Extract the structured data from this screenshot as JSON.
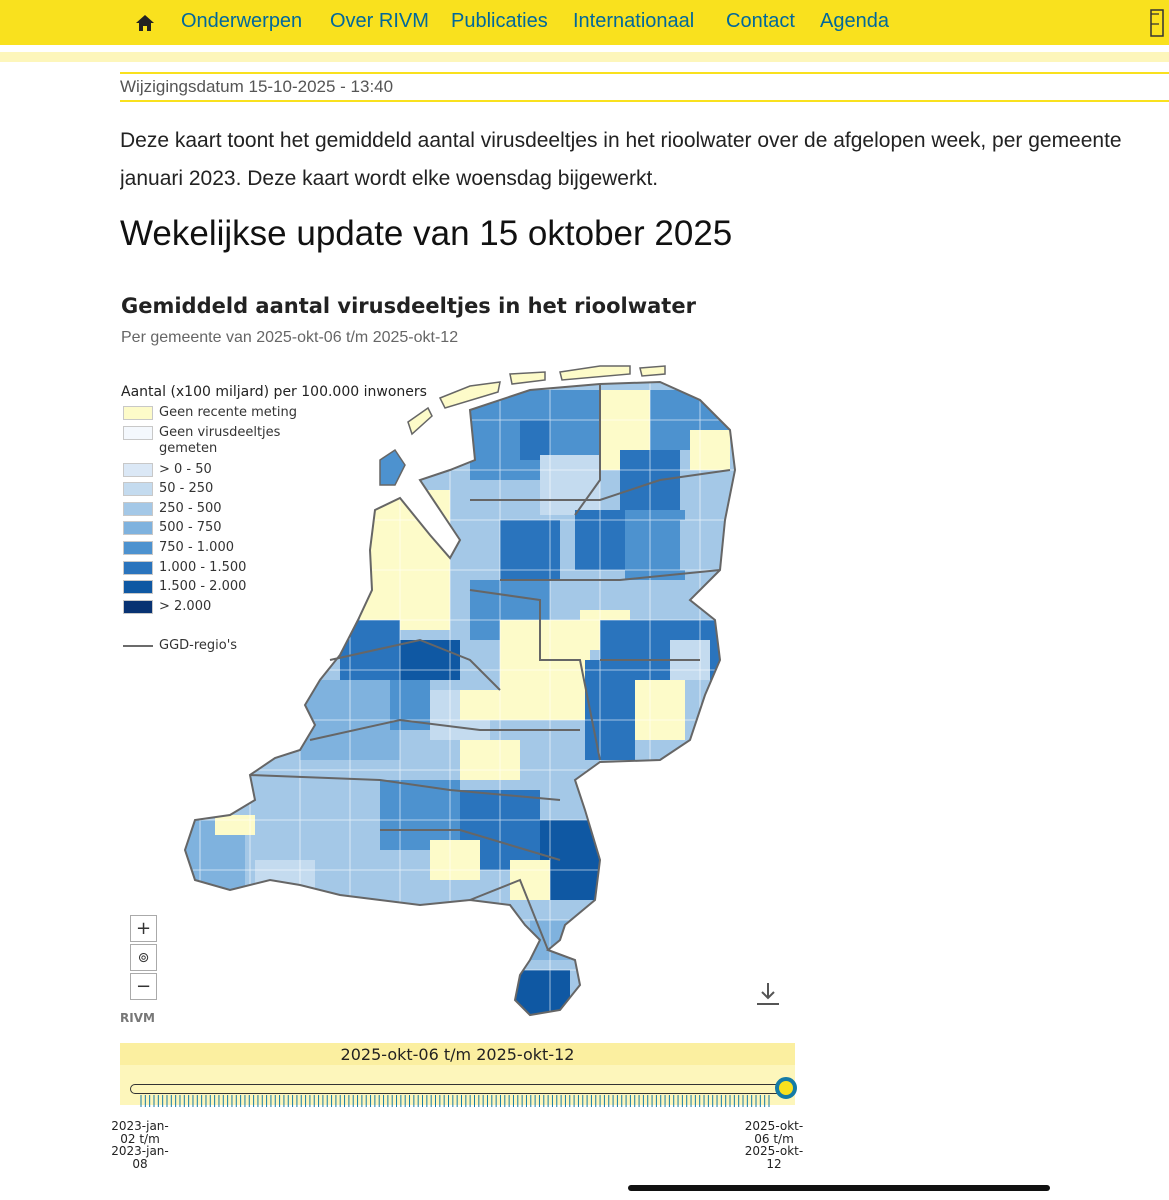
{
  "nav": {
    "items": [
      "Onderwerpen",
      "Over RIVM",
      "Publicaties",
      "Internationaal",
      "Contact",
      "Agenda"
    ],
    "home_icon": "home-icon",
    "accent_color": "#f9e11e",
    "link_color": "#01689b"
  },
  "page": {
    "changed": "Wijzigingsdatum 15-10-2025 - 13:40",
    "intro_line1": "Deze kaart toont het gemiddeld aantal virusdeeltjes in het rioolwater over de afgelopen week, per gemeente",
    "intro_line2": "januari 2023. Deze kaart wordt elke woensdag bijgewerkt.",
    "week_title": "Wekelijkse update van 15 oktober 2025"
  },
  "map": {
    "title": "Gemiddeld aantal virusdeeltjes in het rioolwater",
    "subtitle": "Per gemeente van 2025-okt-06 t/m 2025-okt-12",
    "legend_title": "Aantal (x100 miljard) per 100.000 inwoners",
    "legend": [
      {
        "label": "Geen recente meting",
        "color": "#fdfbc9"
      },
      {
        "label": "Geen virusdeeltjes gemeten",
        "color": "#f4f8fd"
      },
      {
        "label": "> 0 - 50",
        "color": "#dbe8f6"
      },
      {
        "label": "50 - 250",
        "color": "#c4dbef"
      },
      {
        "label": "250 - 500",
        "color": "#a4c8e7"
      },
      {
        "label": "500 - 750",
        "color": "#7fb2de"
      },
      {
        "label": "750 - 1.000",
        "color": "#4d92cf"
      },
      {
        "label": "1.000 - 1.500",
        "color": "#2a74bd"
      },
      {
        "label": "1.500 - 2.000",
        "color": "#0f58a3"
      },
      {
        "label": "> 2.000",
        "color": "#083272"
      }
    ],
    "ggd_label": "GGD-regio's",
    "zoom_in": "+",
    "zoom_reset": "⊚",
    "zoom_out": "−",
    "source": "RIVM",
    "download_icon": "download-icon"
  },
  "timeline": {
    "period": "2025-okt-06 t/m 2025-okt-12",
    "start_lines": [
      "2023-jan-",
      "02 t/m",
      "2023-jan-",
      "08"
    ],
    "end_lines": [
      "2025-okt-",
      "06 t/m",
      "2025-okt-",
      "12"
    ],
    "position": 1.0
  }
}
